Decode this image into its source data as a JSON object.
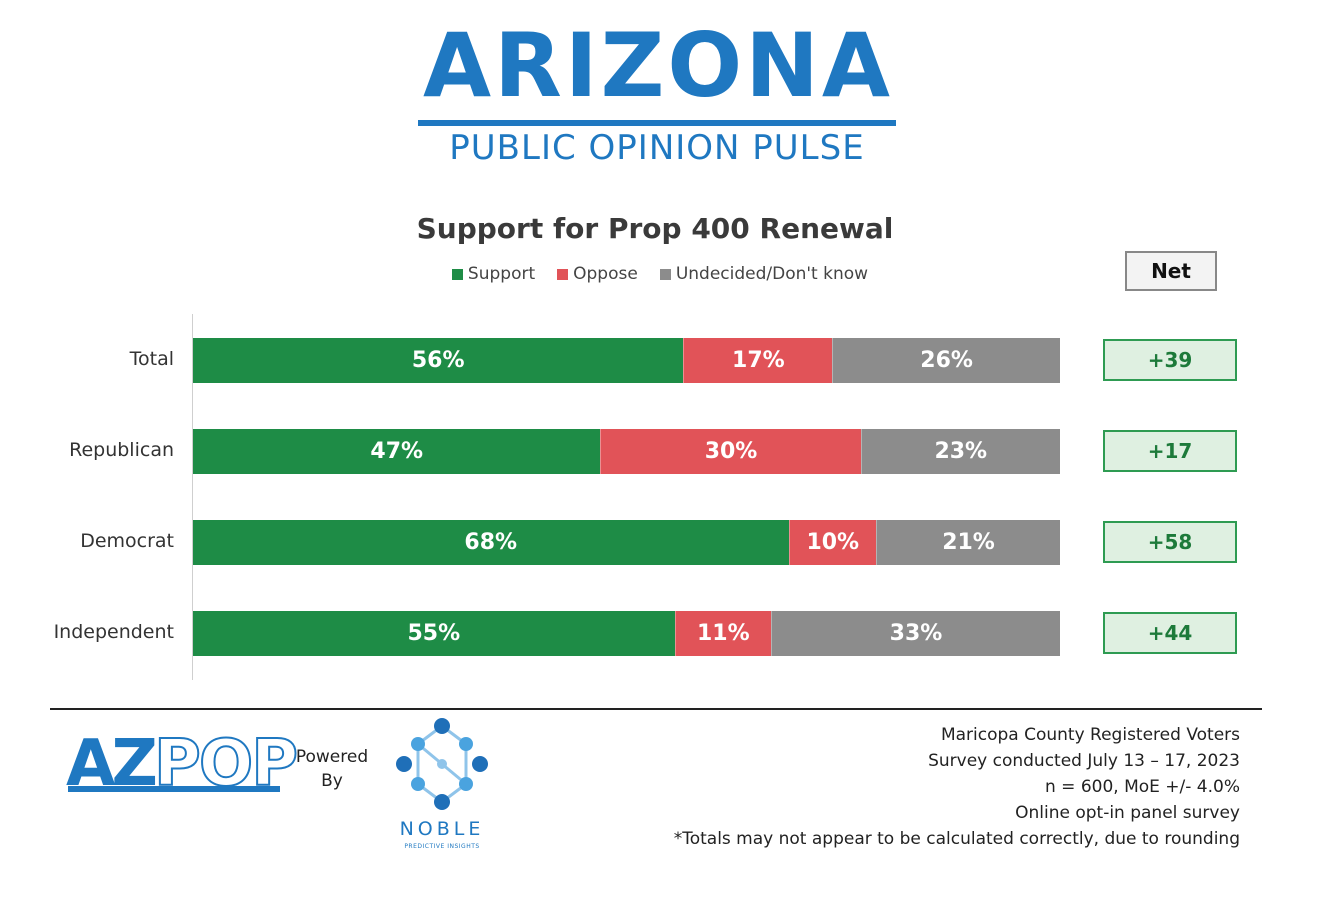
{
  "header": {
    "brand_title": "ARIZONA",
    "brand_subtitle": "PUBLIC OPINION PULSE",
    "brand_color": "#1f78c1"
  },
  "chart_data": {
    "type": "bar",
    "orientation": "horizontal",
    "stacked": true,
    "title": "Support for Prop 400 Renewal",
    "categories": [
      "Total",
      "Republican",
      "Democrat",
      "Independent"
    ],
    "series": [
      {
        "name": "Support",
        "values": [
          56,
          47,
          68,
          55
        ],
        "color": "#1e8c46",
        "labels": [
          "56%",
          "47%",
          "68%",
          "55%"
        ]
      },
      {
        "name": "Oppose",
        "values": [
          17,
          30,
          10,
          11
        ],
        "color": "#e15358",
        "labels": [
          "17%",
          "30%",
          "10%",
          "11%"
        ]
      },
      {
        "name": "Undecided/Don't know",
        "values": [
          26,
          23,
          21,
          33
        ],
        "color": "#8c8c8c",
        "labels": [
          "26%",
          "23%",
          "21%",
          "33%"
        ]
      }
    ],
    "net_header": "Net",
    "net": [
      "+39",
      "+17",
      "+58",
      "+44"
    ],
    "legend_position": "top",
    "xlim": [
      0,
      100
    ]
  },
  "footer": {
    "logo_az": "AZ",
    "logo_pop": "POP",
    "powered_line1": "Powered",
    "powered_line2": "By",
    "noble_word": "NOBLE",
    "noble_subtitle": "PREDICTIVE INSIGHTS",
    "notes": [
      "Maricopa County Registered Voters",
      "Survey conducted July 13 – 17, 2023",
      "n = 600, MoE +/- 4.0%",
      "Online opt-in panel survey",
      "*Totals may not appear to be calculated correctly, due to rounding"
    ]
  }
}
